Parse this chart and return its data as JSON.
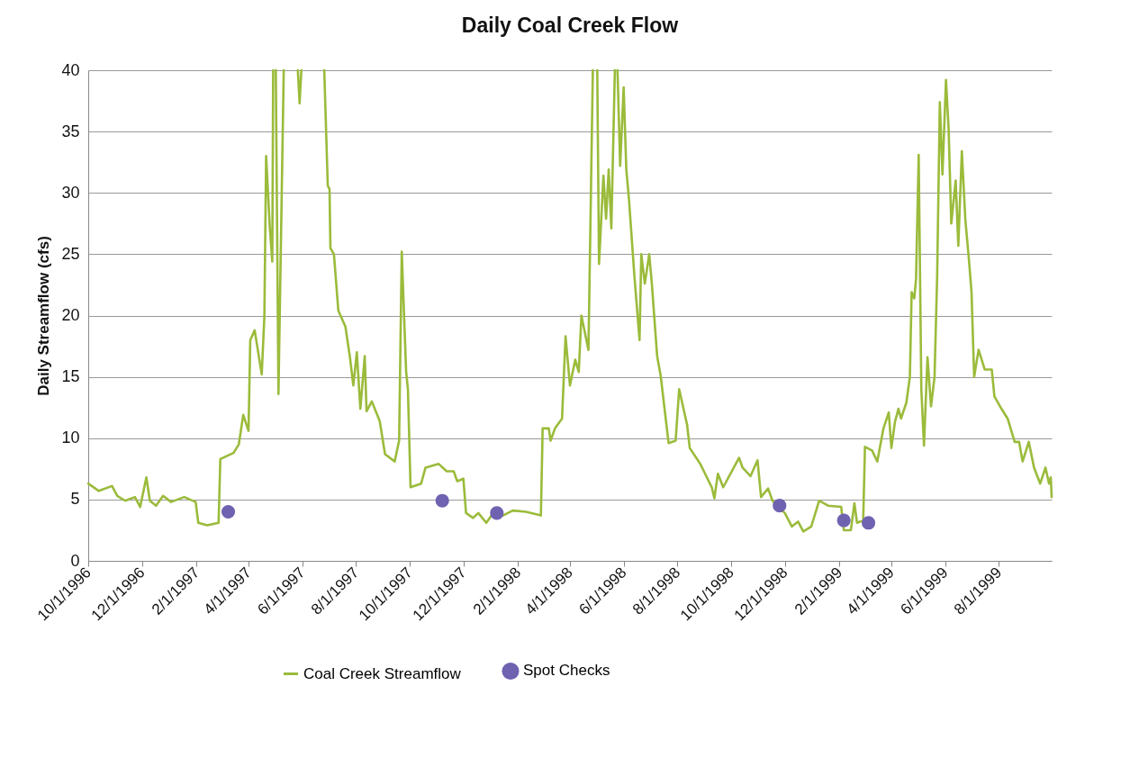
{
  "chart_data": {
    "type": "line",
    "title": "Daily Coal Creek Flow",
    "ylabel": "Daily Streamflow (cfs)",
    "x": [
      "1996-10-01",
      "1996-10-13",
      "1996-10-28",
      "1996-11-03",
      "1996-11-12",
      "1996-11-23",
      "1996-11-29",
      "1996-12-06",
      "1996-12-10",
      "1996-12-17",
      "1996-12-25",
      "1997-01-03",
      "1997-01-18",
      "1997-01-31",
      "1997-02-03",
      "1997-02-13",
      "1997-02-26",
      "1997-02-28",
      "1997-03-15",
      "1997-03-21",
      "1997-03-26",
      "1997-04-01",
      "1997-04-03",
      "1997-04-08",
      "1997-04-16",
      "1997-04-19",
      "1997-04-21",
      "1997-04-25",
      "1997-04-28",
      "1997-04-29",
      "1997-04-30",
      "1997-05-02",
      "1997-05-05",
      "1997-05-11",
      "1997-05-19",
      "1997-05-27",
      "1997-05-29",
      "1997-05-31",
      "1997-06-18",
      "1997-06-26",
      "1997-06-30",
      "1997-07-02",
      "1997-07-03",
      "1997-07-07",
      "1997-07-12",
      "1997-07-20",
      "1997-07-25",
      "1997-07-29",
      "1997-08-02",
      "1997-08-06",
      "1997-08-11",
      "1997-08-13",
      "1997-08-19",
      "1997-08-28",
      "1997-09-03",
      "1997-09-14",
      "1997-09-19",
      "1997-09-22",
      "1997-09-27",
      "1997-09-29",
      "1997-10-02",
      "1997-10-14",
      "1997-10-19",
      "1997-11-03",
      "1997-11-12",
      "1997-11-20",
      "1997-11-24",
      "1997-12-01",
      "1997-12-04",
      "1997-12-12",
      "1997-12-18",
      "1997-12-27",
      "1998-01-04",
      "1998-01-15",
      "1998-01-26",
      "1998-02-10",
      "1998-02-27",
      "1998-03-01",
      "1998-03-08",
      "1998-03-10",
      "1998-03-15",
      "1998-03-23",
      "1998-03-27",
      "1998-04-01",
      "1998-04-07",
      "1998-04-11",
      "1998-04-14",
      "1998-04-22",
      "1998-04-27",
      "1998-04-29",
      "1998-05-02",
      "1998-05-04",
      "1998-05-09",
      "1998-05-12",
      "1998-05-15",
      "1998-05-18",
      "1998-05-22",
      "1998-05-24",
      "1998-05-25",
      "1998-05-28",
      "1998-06-01",
      "1998-06-04",
      "1998-06-07",
      "1998-06-13",
      "1998-06-19",
      "1998-06-21",
      "1998-06-25",
      "1998-06-30",
      "1998-07-03",
      "1998-07-09",
      "1998-07-13",
      "1998-07-22",
      "1998-07-30",
      "1998-08-03",
      "1998-08-12",
      "1998-08-15",
      "1998-08-27",
      "1998-09-09",
      "1998-09-12",
      "1998-09-16",
      "1998-09-22",
      "1998-10-10",
      "1998-10-14",
      "1998-10-23",
      "1998-10-31",
      "1998-11-04",
      "1998-11-12",
      "1998-11-17",
      "1998-12-01",
      "1998-12-09",
      "1998-12-16",
      "1998-12-22",
      "1998-12-31",
      "1999-01-09",
      "1999-01-19",
      "1999-02-03",
      "1999-02-06",
      "1999-02-14",
      "1999-02-18",
      "1999-02-21",
      "1999-02-28",
      "1999-03-02",
      "1999-03-10",
      "1999-03-16",
      "1999-03-23",
      "1999-03-29",
      "1999-04-01",
      "1999-04-05",
      "1999-04-09",
      "1999-04-12",
      "1999-04-18",
      "1999-04-22",
      "1999-04-24",
      "1999-04-27",
      "1999-04-29",
      "1999-05-02",
      "1999-05-05",
      "1999-05-08",
      "1999-05-12",
      "1999-05-16",
      "1999-05-20",
      "1999-05-23",
      "1999-05-26",
      "1999-05-29",
      "1999-06-02",
      "1999-06-05",
      "1999-06-08",
      "1999-06-13",
      "1999-06-16",
      "1999-06-20",
      "1999-06-24",
      "1999-06-28",
      "1999-07-01",
      "1999-07-04",
      "1999-07-09",
      "1999-07-16",
      "1999-07-24",
      "1999-07-27",
      "1999-08-04",
      "1999-08-11",
      "1999-08-19",
      "1999-08-24",
      "1999-08-28",
      "1999-09-04",
      "1999-09-10",
      "1999-09-17",
      "1999-09-23",
      "1999-09-27",
      "1999-09-29",
      "1999-09-30"
    ],
    "series": [
      {
        "name": "Coal Creek Streamflow",
        "color": "#9bbb3b",
        "type": "line",
        "values": [
          6.3,
          5.7,
          6.1,
          5.3,
          4.9,
          5.2,
          4.4,
          6.8,
          4.9,
          4.5,
          5.3,
          4.8,
          5.2,
          4.8,
          3.1,
          2.9,
          3.1,
          8.3,
          8.8,
          9.5,
          11.9,
          10.6,
          18.0,
          18.8,
          15.2,
          19.9,
          33.0,
          27.4,
          24.4,
          40,
          null,
          40,
          13.6,
          40,
          null,
          40,
          37.3,
          40,
          null,
          40,
          30.6,
          30.3,
          25.5,
          25.0,
          20.4,
          19.1,
          16.7,
          14.3,
          17.0,
          12.4,
          16.7,
          12.2,
          13.0,
          11.4,
          8.7,
          8.1,
          9.8,
          25.2,
          15.4,
          14.0,
          6.0,
          6.3,
          7.6,
          7.9,
          7.3,
          7.3,
          6.5,
          6.7,
          3.9,
          3.5,
          3.9,
          3.1,
          3.9,
          3.7,
          4.1,
          4.0,
          3.7,
          10.8,
          10.8,
          9.8,
          10.8,
          11.6,
          18.3,
          14.3,
          16.4,
          15.4,
          20.0,
          17.2,
          40,
          null,
          40,
          24.2,
          31.4,
          27.9,
          31.9,
          27.1,
          40,
          null,
          40,
          32.2,
          38.6,
          31.9,
          29.5,
          23.4,
          18.0,
          25.0,
          22.6,
          25.0,
          22.6,
          16.7,
          15.1,
          9.6,
          9.8,
          14.0,
          11.1,
          9.2,
          7.9,
          6.0,
          5.1,
          7.1,
          6.0,
          8.4,
          7.6,
          6.9,
          8.2,
          5.2,
          5.9,
          4.9,
          3.9,
          2.8,
          3.2,
          2.4,
          2.8,
          4.9,
          4.5,
          4.4,
          2.5,
          2.5,
          4.7,
          3.1,
          3.3,
          9.3,
          9.0,
          8.1,
          10.8,
          12.1,
          9.2,
          11.3,
          12.4,
          11.6,
          12.9,
          15.0,
          21.9,
          21.4,
          23.0,
          33.1,
          14.0,
          9.4,
          16.6,
          12.6,
          15.0,
          23.3,
          37.4,
          31.5,
          39.2,
          35.2,
          27.5,
          31.0,
          25.7,
          33.4,
          27.8,
          24.6,
          21.9,
          15.0,
          17.2,
          15.6,
          15.6,
          13.4,
          12.4,
          11.6,
          9.7,
          9.7,
          8.1,
          9.7,
          7.6,
          6.3,
          7.6,
          6.3,
          6.8,
          5.2
        ]
      },
      {
        "name": "Spot Checks",
        "color": "#6f62b0",
        "type": "scatter",
        "x": [
          "1997-03-09",
          "1997-11-07",
          "1998-01-08",
          "1998-11-25",
          "1999-02-06",
          "1999-03-06"
        ],
        "values": [
          4.0,
          4.9,
          3.9,
          4.5,
          3.3,
          3.1
        ]
      }
    ],
    "xlim": [
      "1996-10-01",
      "1999-09-30"
    ],
    "xticks": [
      {
        "value": "1996-10-01",
        "label": "10/1/1996"
      },
      {
        "value": "1996-12-01",
        "label": "12/1/1996"
      },
      {
        "value": "1997-02-01",
        "label": "2/1/1997"
      },
      {
        "value": "1997-04-01",
        "label": "4/1/1997"
      },
      {
        "value": "1997-06-01",
        "label": "6/1/1997"
      },
      {
        "value": "1997-08-01",
        "label": "8/1/1997"
      },
      {
        "value": "1997-10-01",
        "label": "10/1/1997"
      },
      {
        "value": "1997-12-01",
        "label": "12/1/1997"
      },
      {
        "value": "1998-02-01",
        "label": "2/1/1998"
      },
      {
        "value": "1998-04-01",
        "label": "4/1/1998"
      },
      {
        "value": "1998-06-01",
        "label": "6/1/1998"
      },
      {
        "value": "1998-08-01",
        "label": "8/1/1998"
      },
      {
        "value": "1998-10-01",
        "label": "10/1/1998"
      },
      {
        "value": "1998-12-01",
        "label": "12/1/1998"
      },
      {
        "value": "1999-02-01",
        "label": "2/1/1999"
      },
      {
        "value": "1999-04-01",
        "label": "4/1/1999"
      },
      {
        "value": "1999-06-01",
        "label": "6/1/1999"
      },
      {
        "value": "1999-08-01",
        "label": "8/1/1999"
      }
    ],
    "ylim": [
      0,
      40
    ],
    "yticks": [
      0,
      5,
      10,
      15,
      20,
      25,
      30,
      35,
      40
    ],
    "grid": "y",
    "legend": "bottom",
    "line_style": "solid"
  }
}
